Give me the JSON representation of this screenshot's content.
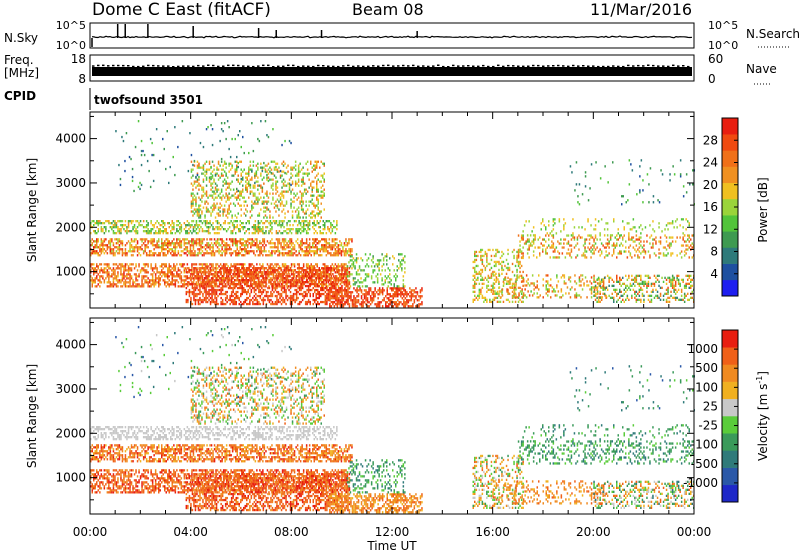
{
  "header": {
    "radar": "Dome C East (fitACF)",
    "beam": "Beam 08",
    "date": "11/Mar/2016"
  },
  "nsky_panel": {
    "left_label": "N.Sky",
    "right_label": "N.Search",
    "left_ticks": [
      "10^5",
      "10^0"
    ],
    "right_ticks": [
      "10^5",
      "10^0"
    ]
  },
  "freq_panel": {
    "left_label_1": "Freq.",
    "left_label_2": "[MHz]",
    "right_label": "Nave",
    "left_ticks": [
      "18",
      "8"
    ],
    "right_ticks": [
      "60",
      "0"
    ]
  },
  "cpid_panel": {
    "label": "CPID",
    "value": "twofsound 3501"
  },
  "x_axis": {
    "label": "Time UT",
    "ticks": [
      "00:00",
      "04:00",
      "08:00",
      "12:00",
      "16:00",
      "20:00",
      "00:00"
    ]
  },
  "chart_data": [
    {
      "type": "heatmap",
      "name": "Power",
      "ylabel": "Slant Range [km]",
      "xlabel": "",
      "y_ticks": [
        "1000",
        "2000",
        "3000",
        "4000"
      ],
      "ylim": [
        180,
        4600
      ],
      "xlim_hours": [
        0,
        24
      ],
      "colorbar": {
        "label": "Power [dB]",
        "range": [
          0,
          32
        ],
        "ticks": [
          "4",
          "8",
          "12",
          "16",
          "20",
          "24",
          "28"
        ],
        "colors": [
          "#1e1ef0",
          "#1e50a0",
          "#2e7a7a",
          "#3e9a50",
          "#52c43a",
          "#9ad43a",
          "#f0c020",
          "#f09020",
          "#f07018",
          "#f04a10",
          "#e81e10"
        ]
      }
    },
    {
      "type": "heatmap",
      "name": "Velocity",
      "ylabel": "Slant Range [km]",
      "xlabel": "Time UT",
      "y_ticks": [
        "1000",
        "2000",
        "3000",
        "4000"
      ],
      "ylim": [
        180,
        4600
      ],
      "xlim_hours": [
        0,
        24
      ],
      "colorbar": {
        "label": "Velocity [m s",
        "unit_exp": "-1",
        "unit_close": "]",
        "ticks": [
          "1000",
          "500",
          "100",
          "25",
          "-25",
          "-100",
          "-500",
          "-1000"
        ],
        "colors": [
          "#1e28c8",
          "#2a58a8",
          "#2f7a7a",
          "#3a9a5a",
          "#5acc3a",
          "#c8c8c8",
          "#f0b020",
          "#f08a20",
          "#f06018",
          "#e81e10"
        ]
      }
    }
  ]
}
